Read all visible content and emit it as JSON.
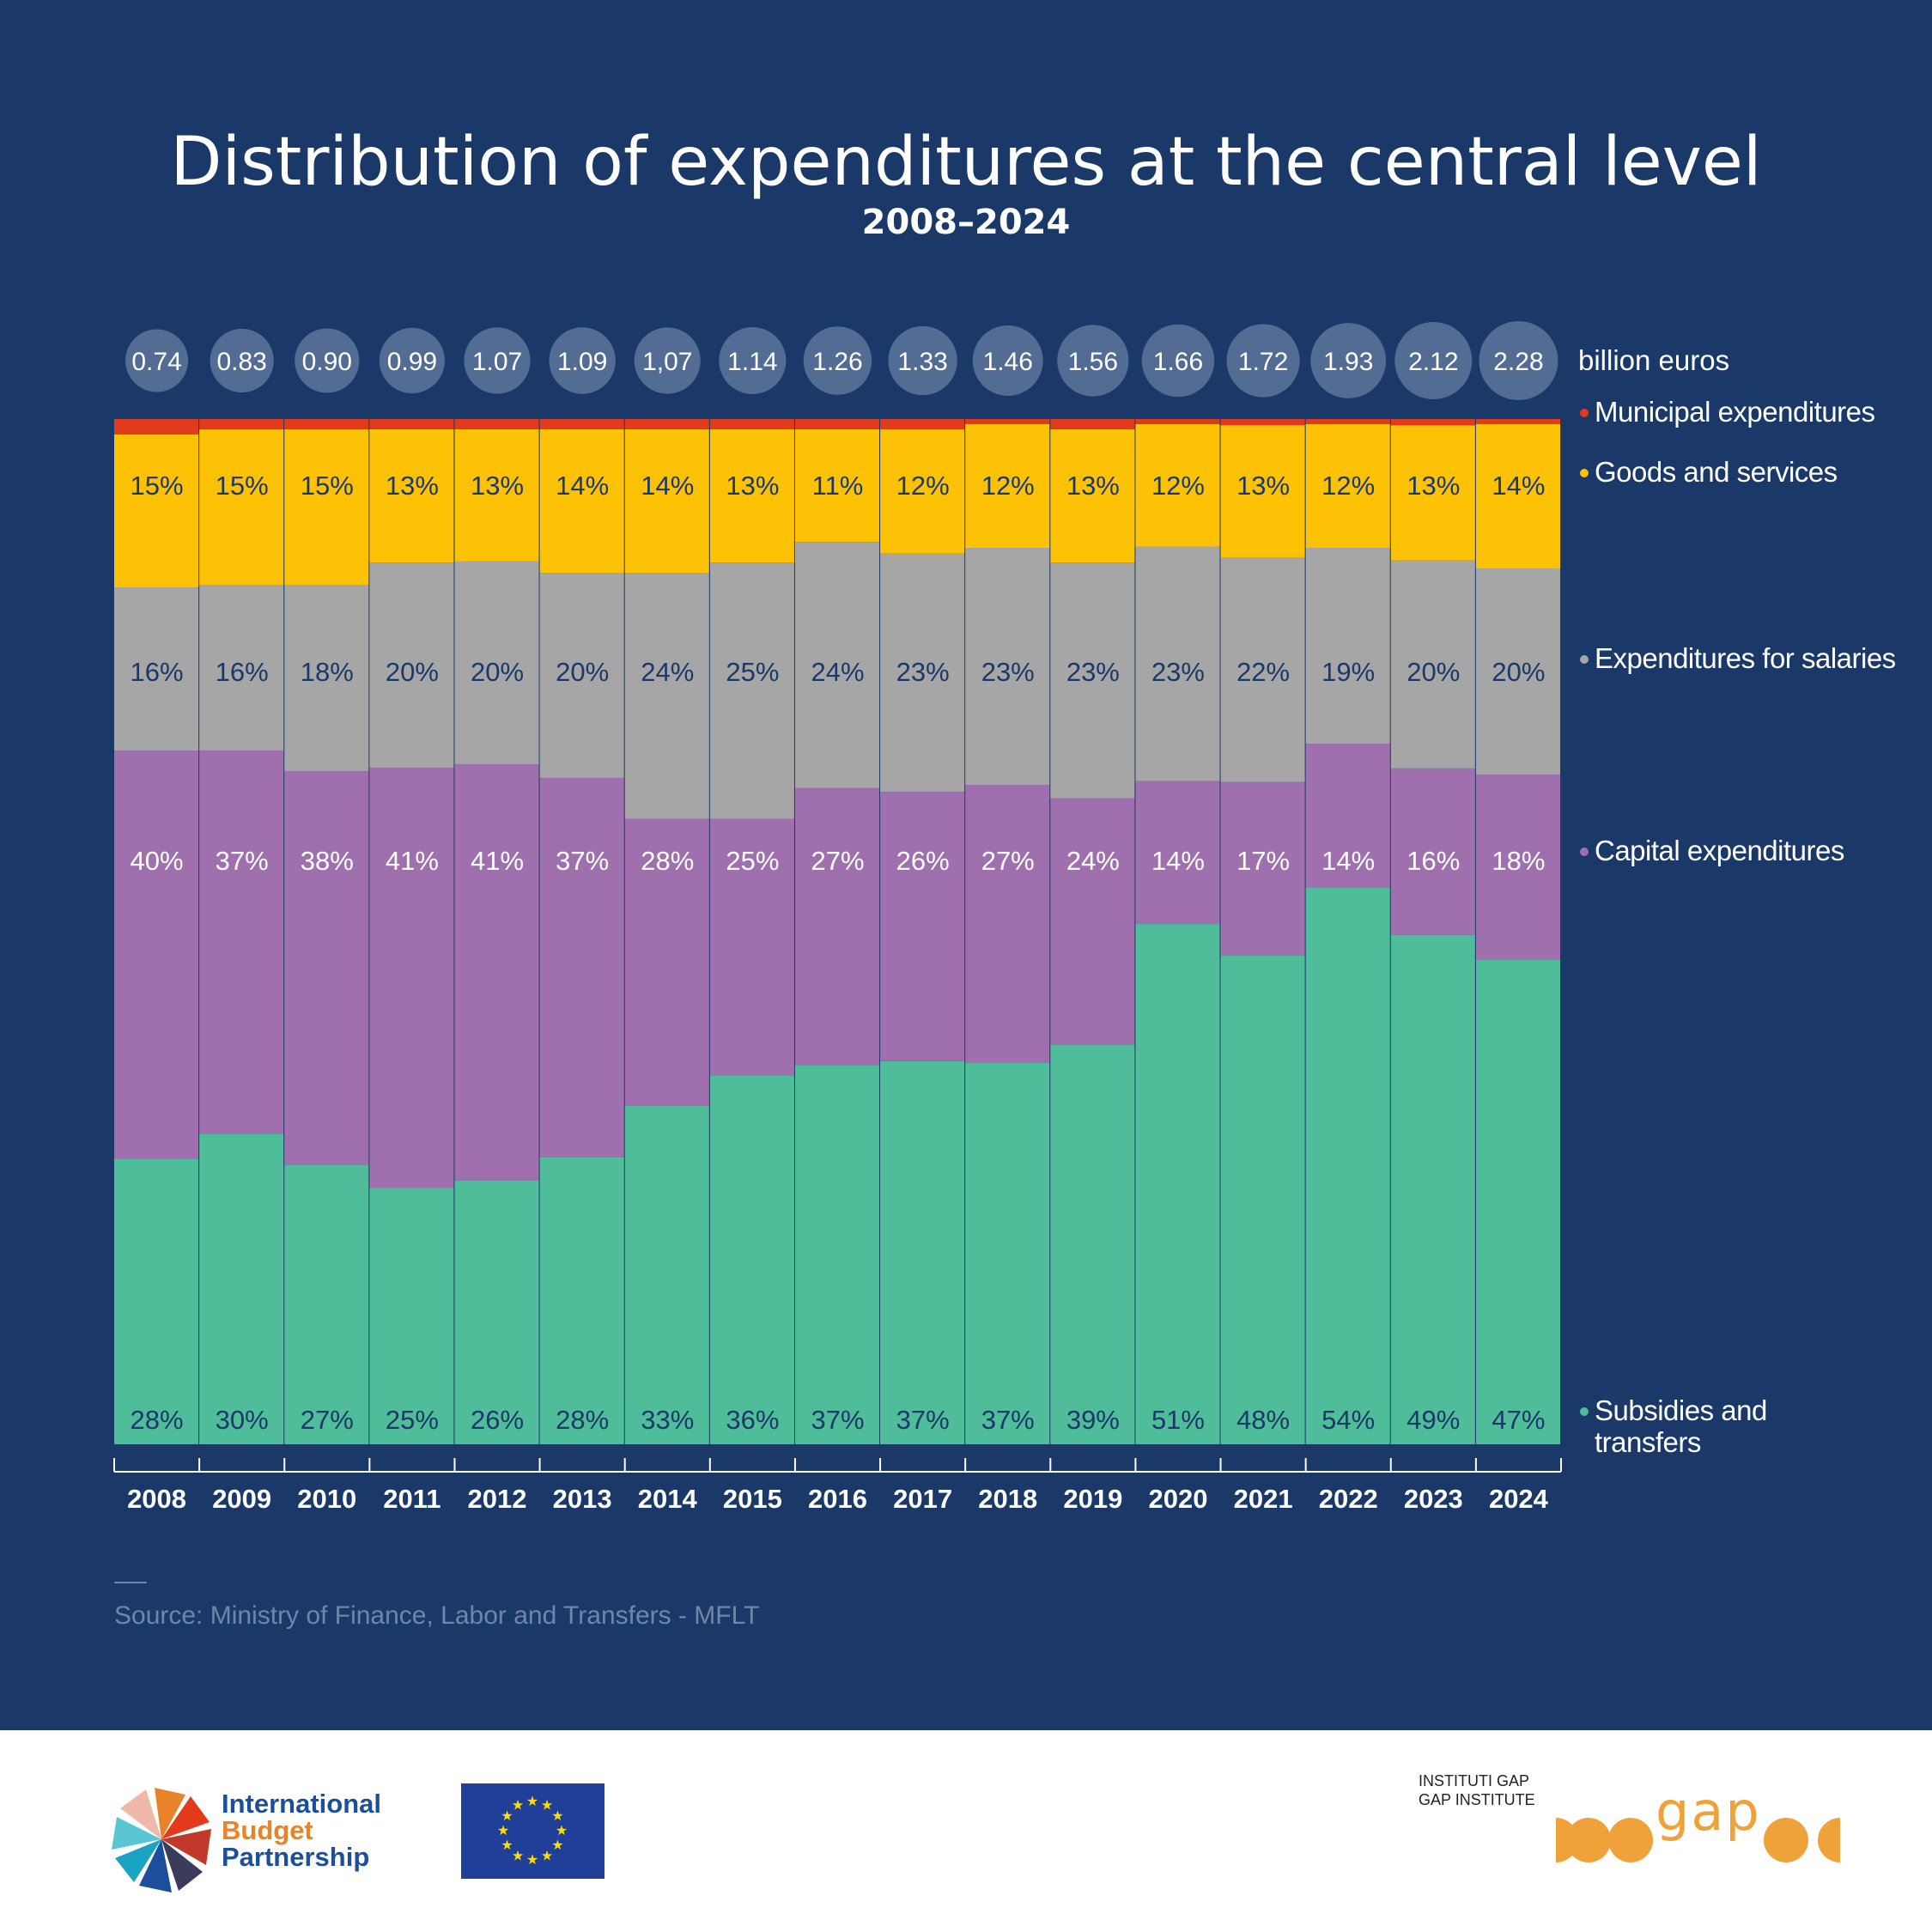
{
  "title": "Distribution of expenditures at the central level",
  "subtitle": "2008–2024",
  "totals_unit_label": "billion euros",
  "source_text": "Source: Ministry of Finance, Labor and Transfers - MFLT",
  "colors": {
    "background": "#1b3968",
    "municipal": "#e23b1c",
    "goods": "#fdc106",
    "salaries": "#a6a6a6",
    "capital": "#9f6fae",
    "subsidies": "#4fbd9a",
    "bubble": "#536c94",
    "label_dark": "#1b3968",
    "label_light": "#ffffff"
  },
  "chart_data": {
    "type": "bar",
    "stacked": true,
    "normalized_percent": true,
    "title": "Distribution of expenditures at the central level",
    "subtitle": "2008–2024",
    "categories": [
      "2008",
      "2009",
      "2010",
      "2011",
      "2012",
      "2013",
      "2014",
      "2015",
      "2016",
      "2017",
      "2018",
      "2019",
      "2020",
      "2021",
      "2022",
      "2023",
      "2024"
    ],
    "totals": {
      "unit": "billion euros",
      "values": [
        0.74,
        0.83,
        0.9,
        0.99,
        1.07,
        1.09,
        1.07,
        1.14,
        1.26,
        1.33,
        1.46,
        1.56,
        1.66,
        1.72,
        1.93,
        2.12,
        2.28
      ],
      "labels": [
        "0.74",
        "0.83",
        "0.90",
        "0.99",
        "1.07",
        "1.09",
        "1,07",
        "1.14",
        "1.26",
        "1.33",
        "1.46",
        "1.56",
        "1.66",
        "1.72",
        "1.93",
        "2.12",
        "2.28"
      ]
    },
    "series": [
      {
        "name": "Subsidies and transfers",
        "color": "#4fbd9a",
        "label_color": "#1b3968",
        "values": [
          28,
          30,
          27,
          25,
          26,
          28,
          33,
          36,
          37,
          37,
          37,
          39,
          51,
          48,
          54,
          49,
          47
        ],
        "labels": [
          "28%",
          "30%",
          "27%",
          "25%",
          "26%",
          "28%",
          "33%",
          "36%",
          "37%",
          "37%",
          "37%",
          "39%",
          "51%",
          "48%",
          "54%",
          "49%",
          "47%"
        ]
      },
      {
        "name": "Capital expenditures",
        "color": "#9f6fae",
        "label_color": "#ffffff",
        "values": [
          40,
          37,
          38,
          41,
          41,
          37,
          28,
          25,
          27,
          26,
          27,
          24,
          14,
          17,
          14,
          16,
          18
        ],
        "labels": [
          "40%",
          "37%",
          "38%",
          "41%",
          "41%",
          "37%",
          "28%",
          "25%",
          "27%",
          "26%",
          "27%",
          "24%",
          "14%",
          "17%",
          "14%",
          "16%",
          "18%"
        ]
      },
      {
        "name": "Expenditures for salaries",
        "color": "#a6a6a6",
        "label_color": "#1b3968",
        "values": [
          16,
          16,
          18,
          20,
          20,
          20,
          24,
          25,
          24,
          23,
          23,
          23,
          23,
          22,
          19,
          20,
          20
        ],
        "labels": [
          "16%",
          "16%",
          "18%",
          "20%",
          "20%",
          "20%",
          "24%",
          "25%",
          "24%",
          "23%",
          "23%",
          "23%",
          "23%",
          "22%",
          "19%",
          "20%",
          "20%"
        ]
      },
      {
        "name": "Goods and services",
        "color": "#fdc106",
        "label_color": "#1b3968",
        "values": [
          15,
          15,
          15,
          13,
          13,
          14,
          14,
          13,
          11,
          12,
          12,
          13,
          12,
          13,
          12,
          13,
          14
        ],
        "labels": [
          "15%",
          "15%",
          "15%",
          "13%",
          "13%",
          "14%",
          "14%",
          "13%",
          "11%",
          "12%",
          "12%",
          "13%",
          "12%",
          "13%",
          "12%",
          "13%",
          "14%"
        ]
      },
      {
        "name": "Municipal expenditures",
        "color": "#e23b1c",
        "label_color": "#ffffff",
        "values": [
          1.5,
          1,
          1,
          1,
          1,
          1,
          1,
          1,
          1,
          1,
          0.5,
          1,
          0.5,
          0.6,
          0.5,
          0.6,
          0.5
        ],
        "labels": []
      }
    ],
    "legend_position": "right",
    "ylim": [
      0,
      100
    ]
  },
  "footer": {
    "ibp": {
      "line1": "International",
      "line2": "Budget",
      "line3": "Partnership"
    },
    "gap": {
      "line1": "INSTITUTI GAP",
      "line2": "GAP INSTITUTE",
      "wordmark": "gap"
    }
  }
}
